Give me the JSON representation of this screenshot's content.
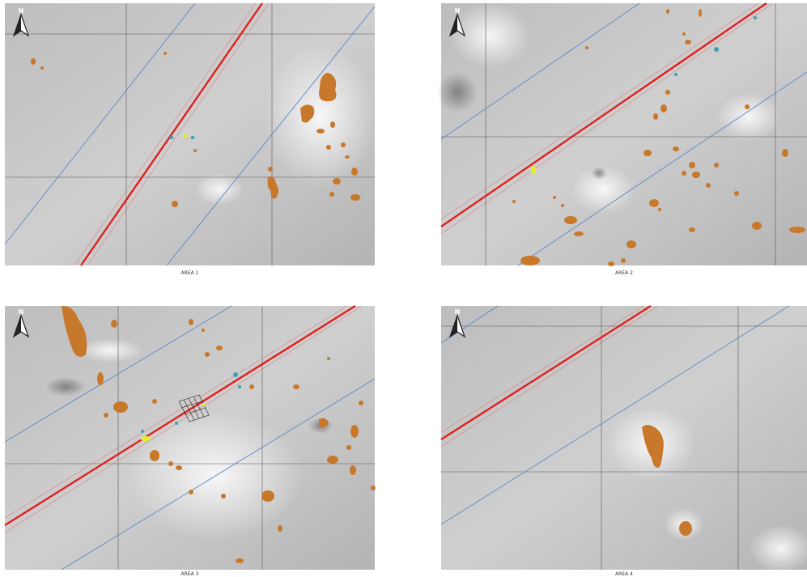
{
  "panels": [
    {
      "caption": "AREA 1",
      "north": "N"
    },
    {
      "caption": "AREA 2",
      "north": "N"
    },
    {
      "caption": "AREA 3",
      "north": "N"
    },
    {
      "caption": "AREA 4",
      "north": "N"
    }
  ]
}
